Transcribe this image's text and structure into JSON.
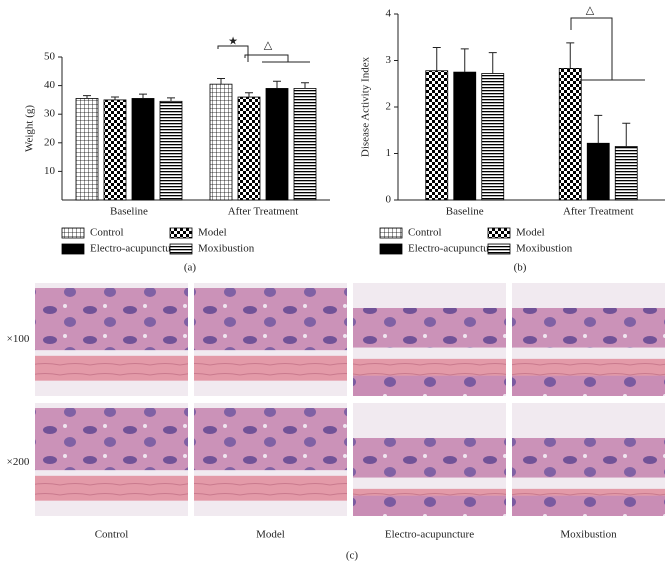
{
  "chart_data": [
    {
      "type": "bar",
      "ylabel": "Weight (g)",
      "panel": "(a)",
      "categories": [
        "Baseline",
        "After Treatment"
      ],
      "ylim": [
        0,
        50
      ],
      "yticks": [
        10,
        20,
        30,
        40,
        50
      ],
      "series": [
        {
          "name": "Control",
          "pattern": "grid",
          "color": "#000000",
          "values": [
            35.5,
            40.5
          ],
          "errors": [
            1.0,
            2.0
          ]
        },
        {
          "name": "Model",
          "pattern": "checker",
          "color": "#000000",
          "values": [
            35,
            36
          ],
          "errors": [
            1.0,
            1.5
          ]
        },
        {
          "name": "Electro-acupuncture",
          "pattern": "solid",
          "color": "#000000",
          "values": [
            35.5,
            39
          ],
          "errors": [
            1.5,
            2.5
          ]
        },
        {
          "name": "Moxibustion",
          "pattern": "hstripe",
          "color": "#000000",
          "values": [
            34.5,
            39
          ],
          "errors": [
            1.2,
            2.0
          ]
        }
      ],
      "annotations": [
        "★",
        "△"
      ]
    },
    {
      "type": "bar",
      "ylabel": "Disease Activity Index",
      "panel": "(b)",
      "categories": [
        "Baseline",
        "After Treatment"
      ],
      "ylim": [
        0,
        4
      ],
      "yticks": [
        0,
        1,
        2,
        3,
        4
      ],
      "series": [
        {
          "name": "Control",
          "pattern": "grid",
          "color": "#000000",
          "values": [
            null,
            null
          ],
          "errors": [
            null,
            null
          ]
        },
        {
          "name": "Model",
          "pattern": "checker",
          "color": "#000000",
          "values": [
            2.78,
            2.83
          ],
          "errors": [
            0.5,
            0.55
          ]
        },
        {
          "name": "Electro-acupuncture",
          "pattern": "solid",
          "color": "#000000",
          "values": [
            2.75,
            1.22
          ],
          "errors": [
            0.5,
            0.6
          ]
        },
        {
          "name": "Moxibustion",
          "pattern": "hstripe",
          "color": "#000000",
          "values": [
            2.72,
            1.15
          ],
          "errors": [
            0.45,
            0.5
          ]
        }
      ],
      "annotations": [
        "△"
      ]
    }
  ],
  "histology": {
    "rows": [
      "×100",
      "×200"
    ],
    "columns": [
      "Control",
      "Model",
      "Electro-acupuncture",
      "Moxibustion"
    ],
    "panel": "(c)"
  }
}
